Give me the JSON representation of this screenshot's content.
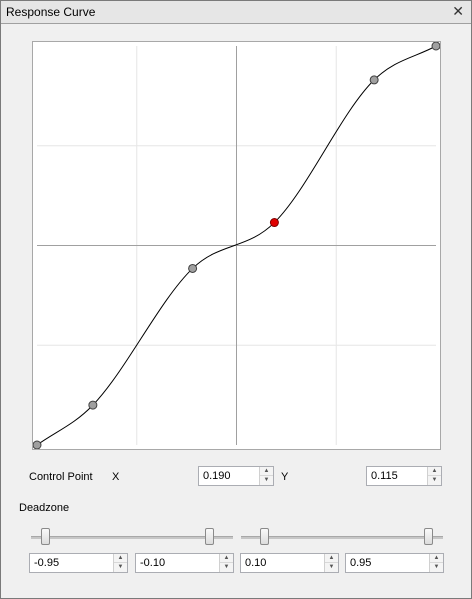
{
  "window": {
    "title": "Response Curve",
    "close_icon": "close-icon"
  },
  "curve": {
    "control_points": [
      {
        "x": -1.0,
        "y": -1.0
      },
      {
        "x": -0.72,
        "y": -0.8
      },
      {
        "x": -0.22,
        "y": -0.115
      },
      {
        "x": 0.19,
        "y": 0.115
      },
      {
        "x": 0.69,
        "y": 0.83
      },
      {
        "x": 1.0,
        "y": 1.0
      }
    ],
    "selected_index": 3,
    "x_range": [
      -1,
      1
    ],
    "y_range": [
      -1,
      1
    ],
    "colors": {
      "selected_point": "#e00000",
      "point": "#a0a0a0",
      "curve": "#000000",
      "axis": "#a0a0a0",
      "grid": "#e6e6e6"
    }
  },
  "control_point": {
    "label": "Control Point",
    "x_label": "X",
    "x_value": "0.190",
    "y_label": "Y",
    "y_value": "0.115"
  },
  "deadzone": {
    "label": "Deadzone",
    "negative": {
      "low": "-0.95",
      "high": "-0.10",
      "low_fraction": 0.05,
      "high_fraction": 0.9
    },
    "positive": {
      "low": "0.10",
      "high": "0.95",
      "low_fraction": 0.1,
      "high_fraction": 0.95
    }
  }
}
